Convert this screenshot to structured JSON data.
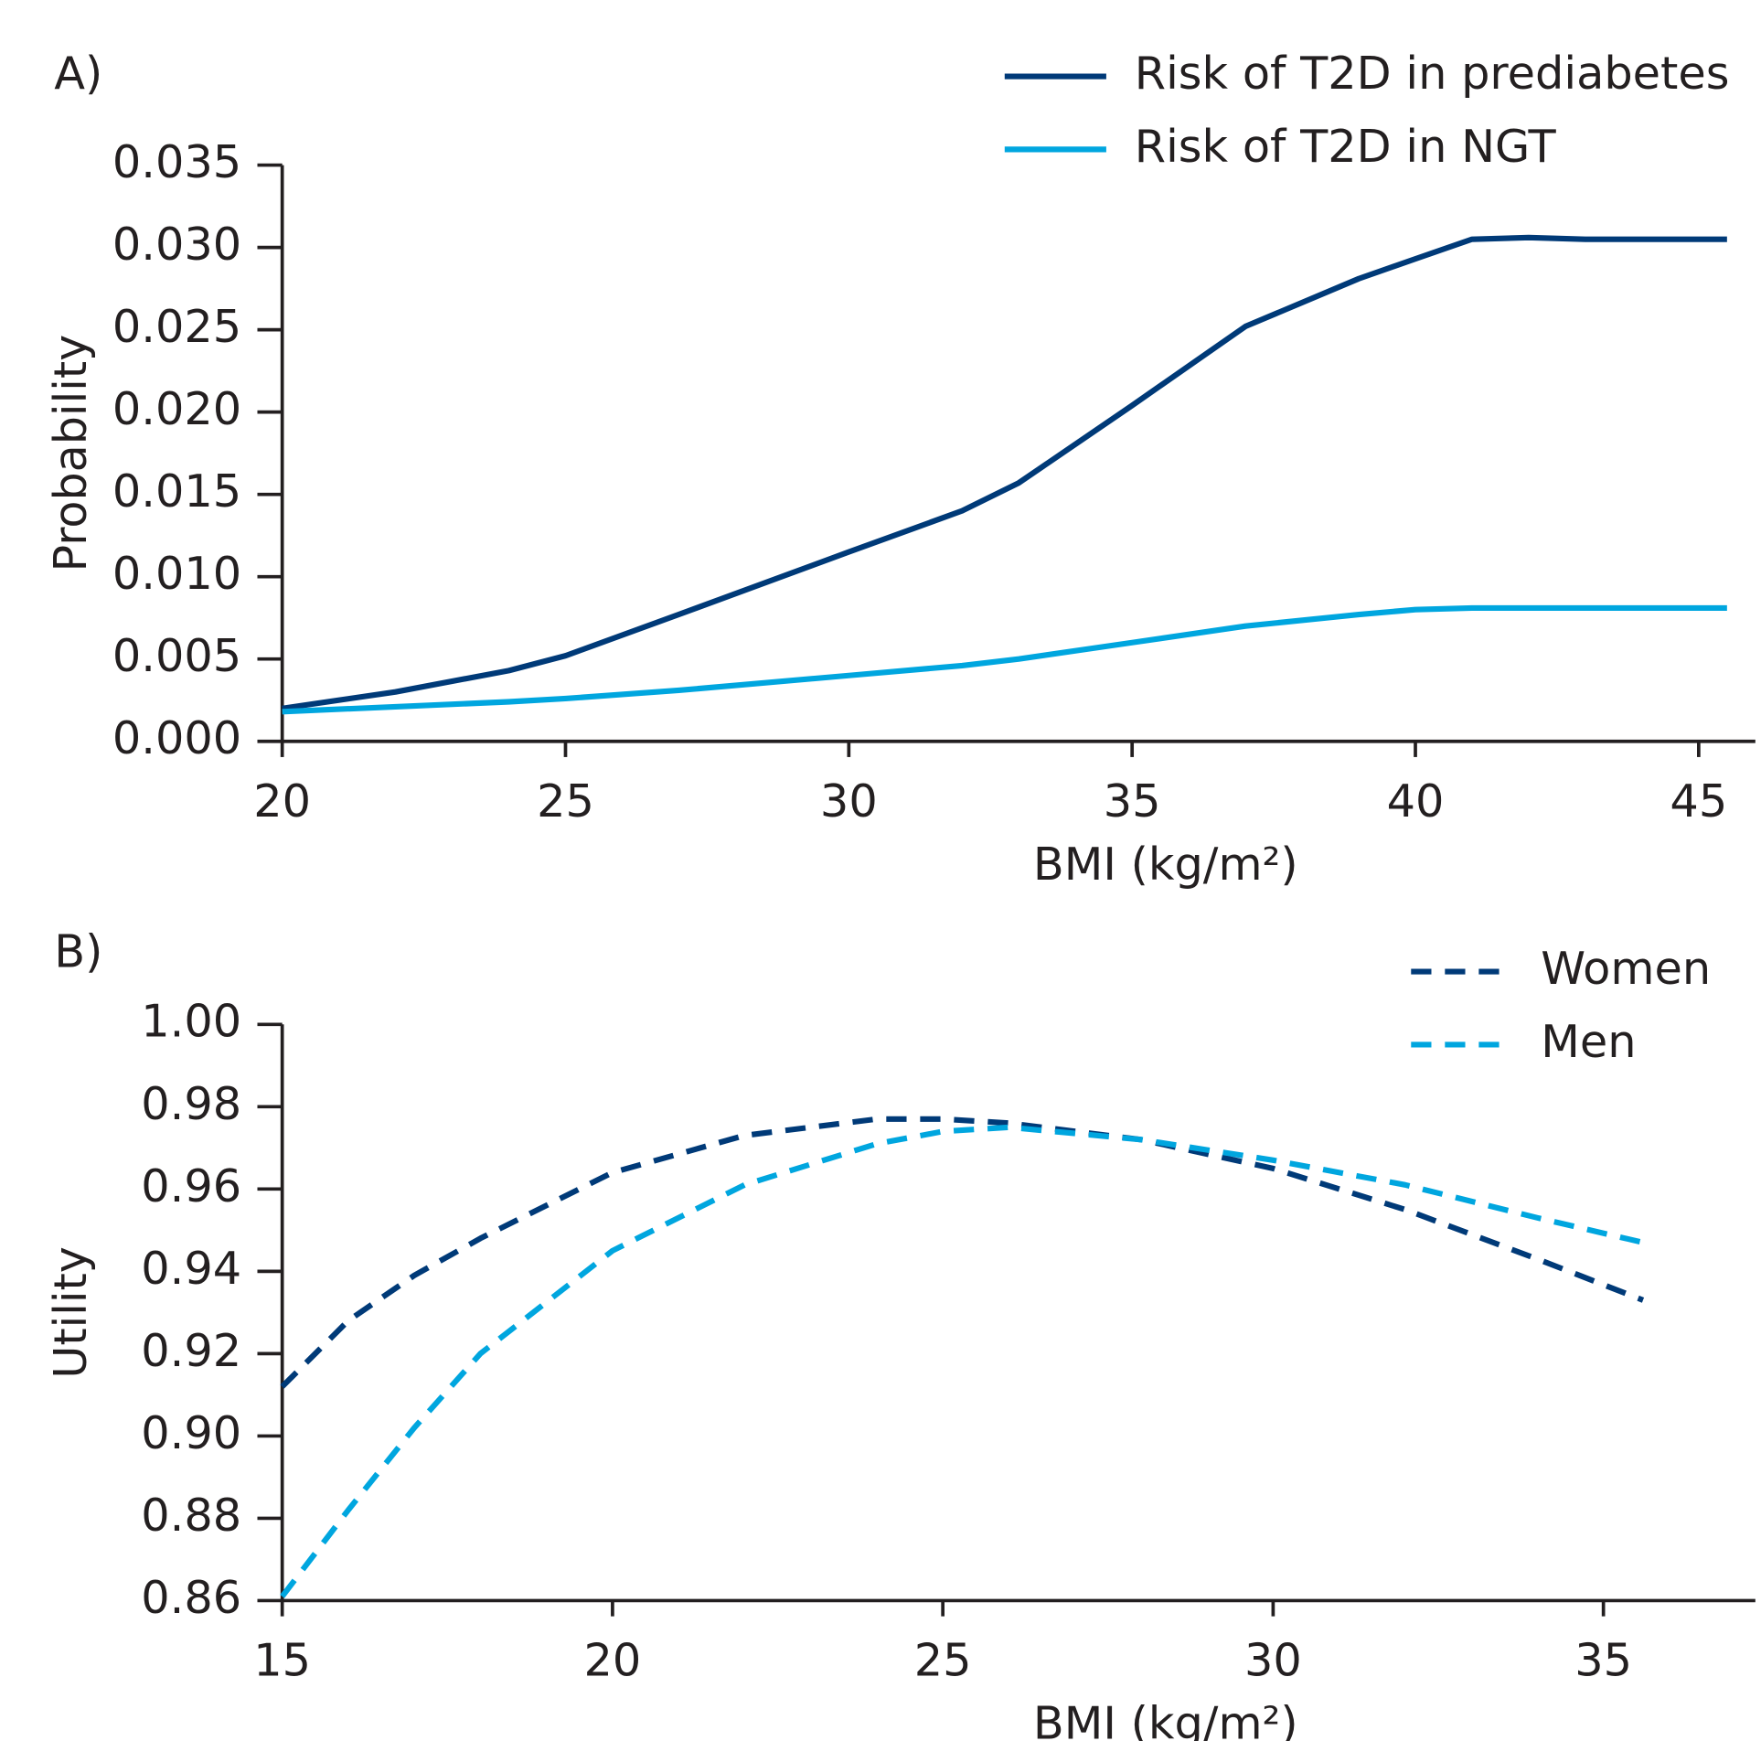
{
  "chart_data": [
    {
      "type": "line",
      "panel_label": "A)",
      "x_label": "BMI (kg/m²)",
      "y_label": "Probability",
      "x": [
        20,
        22,
        24,
        25,
        27,
        30,
        32,
        33,
        35,
        37,
        39,
        40,
        41,
        42,
        43,
        45.5
      ],
      "series": [
        {
          "name": "Risk of T2D in prediabetes",
          "color": "#003a78",
          "dashed": false,
          "values": [
            0.002,
            0.003,
            0.0043,
            0.0052,
            0.0077,
            0.0115,
            0.014,
            0.0157,
            0.0204,
            0.0252,
            0.0281,
            0.0293,
            0.0305,
            0.0306,
            0.0305,
            0.0305
          ]
        },
        {
          "name": "Risk of T2D in NGT",
          "color": "#00a6df",
          "dashed": false,
          "values": [
            0.0018,
            0.0021,
            0.0024,
            0.0026,
            0.0031,
            0.004,
            0.0046,
            0.005,
            0.006,
            0.007,
            0.0077,
            0.008,
            0.0081,
            0.0081,
            0.0081,
            0.0081
          ]
        }
      ],
      "xlim": [
        20,
        46
      ],
      "xticks": [
        20,
        25,
        30,
        35,
        40,
        45
      ],
      "ylim": [
        0,
        0.035
      ],
      "yticks": [
        {
          "value": 0,
          "label": "0.000"
        },
        {
          "value": 0.005,
          "label": "0.005"
        },
        {
          "value": 0.01,
          "label": "0.010"
        },
        {
          "value": 0.015,
          "label": "0.015"
        },
        {
          "value": 0.02,
          "label": "0.020"
        },
        {
          "value": 0.025,
          "label": "0.025"
        },
        {
          "value": 0.03,
          "label": "0.030"
        },
        {
          "value": 0.035,
          "label": "0.035"
        }
      ],
      "legend": "top-right",
      "grid": false
    },
    {
      "type": "line",
      "panel_label": "B)",
      "x_label": "BMI (kg/m²)",
      "y_label": "Utility",
      "x": [
        15,
        16,
        17,
        18,
        20,
        22,
        24,
        25,
        26,
        28,
        30,
        32,
        34,
        35.6
      ],
      "series": [
        {
          "name": "Women",
          "color": "#003a78",
          "dashed": true,
          "values": [
            0.912,
            0.928,
            0.939,
            0.948,
            0.964,
            0.973,
            0.977,
            0.977,
            0.976,
            0.972,
            0.965,
            0.955,
            0.943,
            0.933
          ]
        },
        {
          "name": "Men",
          "color": "#00a6df",
          "dashed": true,
          "values": [
            0.861,
            0.882,
            0.902,
            0.92,
            0.945,
            0.961,
            0.971,
            0.974,
            0.975,
            0.972,
            0.967,
            0.961,
            0.953,
            0.947
          ]
        }
      ],
      "xlim": [
        15,
        37.3
      ],
      "xticks": [
        15,
        20,
        25,
        30,
        35
      ],
      "ylim": [
        0.86,
        1
      ],
      "yticks": [
        {
          "value": 0.86,
          "label": "0.86"
        },
        {
          "value": 0.88,
          "label": "0.88"
        },
        {
          "value": 0.9,
          "label": "0.90"
        },
        {
          "value": 0.92,
          "label": "0.92"
        },
        {
          "value": 0.94,
          "label": "0.94"
        },
        {
          "value": 0.96,
          "label": "0.96"
        },
        {
          "value": 0.98,
          "label": "0.98"
        },
        {
          "value": 1,
          "label": "1.00"
        }
      ],
      "legend": "top-right",
      "grid": false
    }
  ]
}
